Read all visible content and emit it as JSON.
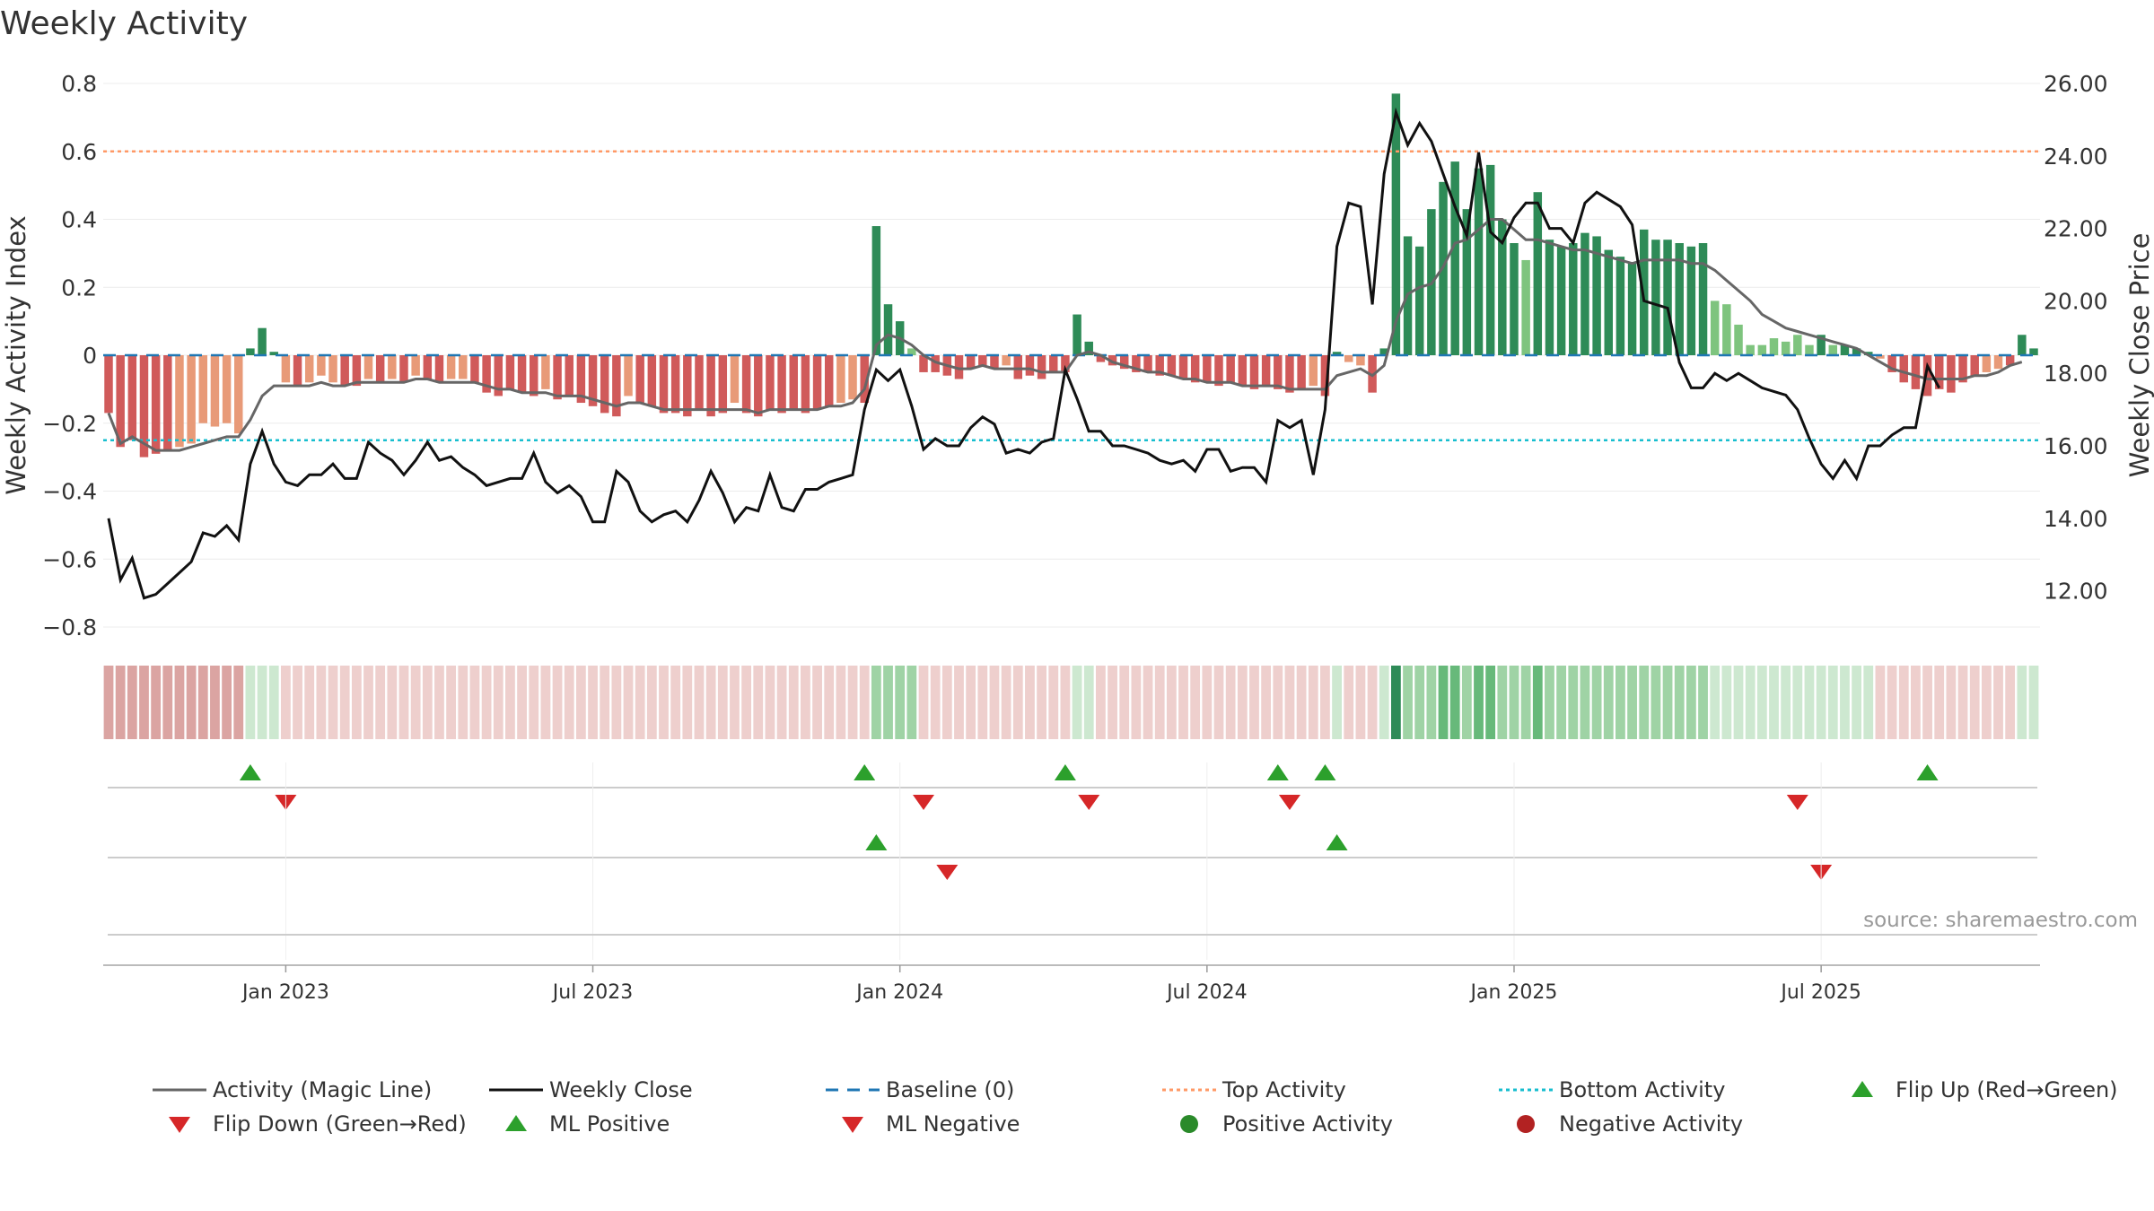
{
  "title": "Weekly Activity",
  "source": "source: sharemaestro.com",
  "colors": {
    "bull_dark": "#2e8b57",
    "bull_light": "#7ec47e",
    "bear_dark": "#d05a5a",
    "bear_light": "#e89a78",
    "magic": "#666666",
    "close": "#111111",
    "baseline": "#1f77b4",
    "top": "#ff9966",
    "bottom": "#17becf",
    "up": "#2ca02c",
    "down": "#d62728"
  },
  "chart_data": {
    "type": "bar+line",
    "title": "Weekly Activity",
    "ylabel": "Weekly Activity Index",
    "y2label": "Weekly Close Price",
    "ylim": [
      -0.8,
      0.8
    ],
    "y2lim": [
      11.0,
      26.0
    ],
    "y_ticks": [
      "0.8",
      "0.6",
      "0.4",
      "0.2",
      "0",
      "−0.2",
      "−0.4",
      "−0.6",
      "−0.8"
    ],
    "y_tick_values": [
      0.8,
      0.6,
      0.4,
      0.2,
      0,
      -0.2,
      -0.4,
      -0.6,
      -0.8
    ],
    "y2_ticks": [
      "26.00",
      "24.00",
      "22.00",
      "20.00",
      "18.00",
      "16.00",
      "14.00",
      "12.00"
    ],
    "y2_tick_values": [
      26,
      24,
      22,
      20,
      18,
      16,
      14,
      12
    ],
    "x_ticks": [
      "Jan 2023",
      "Jul 2023",
      "Jan 2024",
      "Jul 2024",
      "Jan 2025",
      "Jul 2025"
    ],
    "x_tick_weeks": [
      15,
      41,
      67,
      93,
      119,
      145
    ],
    "top_activity": 0.6,
    "bottom_activity": -0.25,
    "baseline": 0,
    "activity": [
      -0.17,
      -0.27,
      -0.25,
      -0.3,
      -0.29,
      -0.28,
      -0.27,
      -0.26,
      -0.2,
      -0.21,
      -0.2,
      -0.23,
      0.02,
      0.08,
      0.01,
      -0.08,
      -0.09,
      -0.08,
      -0.06,
      -0.08,
      -0.09,
      -0.09,
      -0.07,
      -0.08,
      -0.07,
      -0.08,
      -0.06,
      -0.07,
      -0.08,
      -0.07,
      -0.07,
      -0.08,
      -0.11,
      -0.12,
      -0.1,
      -0.11,
      -0.12,
      -0.1,
      -0.13,
      -0.12,
      -0.14,
      -0.15,
      -0.17,
      -0.18,
      -0.12,
      -0.14,
      -0.15,
      -0.17,
      -0.17,
      -0.18,
      -0.16,
      -0.18,
      -0.17,
      -0.14,
      -0.17,
      -0.18,
      -0.16,
      -0.17,
      -0.16,
      -0.17,
      -0.16,
      -0.15,
      -0.14,
      -0.13,
      -0.14,
      0.38,
      0.15,
      0.1,
      0.02,
      -0.05,
      -0.05,
      -0.06,
      -0.07,
      -0.04,
      -0.03,
      -0.04,
      -0.03,
      -0.07,
      -0.06,
      -0.07,
      -0.05,
      -0.05,
      0.12,
      0.04,
      -0.02,
      -0.03,
      -0.04,
      -0.05,
      -0.05,
      -0.06,
      -0.06,
      -0.07,
      -0.08,
      -0.08,
      -0.09,
      -0.08,
      -0.09,
      -0.1,
      -0.09,
      -0.1,
      -0.11,
      -0.1,
      -0.09,
      -0.12,
      0.01,
      -0.02,
      -0.03,
      -0.11,
      0.02,
      0.77,
      0.35,
      0.32,
      0.43,
      0.51,
      0.57,
      0.43,
      0.55,
      0.56,
      0.4,
      0.33,
      0.28,
      0.48,
      0.34,
      0.32,
      0.33,
      0.36,
      0.35,
      0.31,
      0.29,
      0.27,
      0.37,
      0.34,
      0.34,
      0.33,
      0.32,
      0.33,
      0.16,
      0.15,
      0.09,
      0.03,
      0.03,
      0.05,
      0.04,
      0.06,
      0.03,
      0.06,
      0.03,
      0.03,
      0.02,
      0.01,
      -0.01,
      -0.05,
      -0.08,
      -0.1,
      -0.12,
      -0.1,
      -0.11,
      -0.08,
      -0.06,
      -0.05,
      -0.04,
      -0.03,
      0.06,
      0.02
    ],
    "magic_line": [
      -0.17,
      -0.26,
      -0.24,
      -0.26,
      -0.28,
      -0.28,
      -0.28,
      -0.27,
      -0.26,
      -0.25,
      -0.24,
      -0.24,
      -0.19,
      -0.12,
      -0.09,
      -0.09,
      -0.09,
      -0.09,
      -0.08,
      -0.09,
      -0.09,
      -0.08,
      -0.08,
      -0.08,
      -0.08,
      -0.08,
      -0.07,
      -0.07,
      -0.08,
      -0.08,
      -0.08,
      -0.08,
      -0.09,
      -0.1,
      -0.1,
      -0.11,
      -0.11,
      -0.11,
      -0.12,
      -0.12,
      -0.12,
      -0.13,
      -0.14,
      -0.15,
      -0.14,
      -0.14,
      -0.15,
      -0.16,
      -0.16,
      -0.16,
      -0.16,
      -0.16,
      -0.16,
      -0.16,
      -0.16,
      -0.17,
      -0.16,
      -0.16,
      -0.16,
      -0.16,
      -0.16,
      -0.15,
      -0.15,
      -0.14,
      -0.1,
      0.03,
      0.06,
      0.05,
      0.03,
      0.0,
      -0.02,
      -0.03,
      -0.04,
      -0.04,
      -0.03,
      -0.04,
      -0.04,
      -0.04,
      -0.04,
      -0.05,
      -0.05,
      -0.05,
      0.0,
      0.01,
      0.0,
      -0.02,
      -0.03,
      -0.04,
      -0.05,
      -0.05,
      -0.06,
      -0.07,
      -0.07,
      -0.08,
      -0.08,
      -0.08,
      -0.09,
      -0.09,
      -0.09,
      -0.09,
      -0.1,
      -0.1,
      -0.1,
      -0.1,
      -0.06,
      -0.05,
      -0.04,
      -0.06,
      -0.03,
      0.1,
      0.18,
      0.2,
      0.21,
      0.26,
      0.33,
      0.34,
      0.37,
      0.4,
      0.4,
      0.37,
      0.34,
      0.34,
      0.33,
      0.32,
      0.31,
      0.31,
      0.3,
      0.29,
      0.28,
      0.27,
      0.28,
      0.28,
      0.28,
      0.28,
      0.27,
      0.27,
      0.25,
      0.22,
      0.19,
      0.16,
      0.12,
      0.1,
      0.08,
      0.07,
      0.06,
      0.05,
      0.04,
      0.03,
      0.02,
      0.0,
      -0.02,
      -0.04,
      -0.05,
      -0.06,
      -0.07,
      -0.07,
      -0.07,
      -0.07,
      -0.06,
      -0.06,
      -0.05,
      -0.03,
      -0.02
    ],
    "weekly_close": [
      14.0,
      12.3,
      12.9,
      11.8,
      11.9,
      12.2,
      12.5,
      12.8,
      13.6,
      13.5,
      13.8,
      13.4,
      15.5,
      16.4,
      15.5,
      15.0,
      14.9,
      15.2,
      15.2,
      15.5,
      15.1,
      15.1,
      16.1,
      15.8,
      15.6,
      15.2,
      15.6,
      16.1,
      15.6,
      15.7,
      15.4,
      15.2,
      14.9,
      15.0,
      15.1,
      15.1,
      15.8,
      15.0,
      14.7,
      14.9,
      14.6,
      13.9,
      13.9,
      15.3,
      15.0,
      14.2,
      13.9,
      14.1,
      14.2,
      13.9,
      14.5,
      15.3,
      14.7,
      13.9,
      14.3,
      14.2,
      15.2,
      14.3,
      14.2,
      14.8,
      14.8,
      15.0,
      15.1,
      15.2,
      17.0,
      18.1,
      17.8,
      18.1,
      17.1,
      15.9,
      16.2,
      16.0,
      16.0,
      16.5,
      16.8,
      16.6,
      15.8,
      15.9,
      15.8,
      16.1,
      16.2,
      18.1,
      17.3,
      16.4,
      16.4,
      16.0,
      16.0,
      15.9,
      15.8,
      15.6,
      15.5,
      15.6,
      15.3,
      15.9,
      15.9,
      15.3,
      15.4,
      15.4,
      15.0,
      16.7,
      16.5,
      16.7,
      15.2,
      17.0,
      21.5,
      22.7,
      22.6,
      19.9,
      23.5,
      25.2,
      24.3,
      24.9,
      24.4,
      23.5,
      22.6,
      21.8,
      24.1,
      21.9,
      21.6,
      22.3,
      22.7,
      22.7,
      22.0,
      22.0,
      21.6,
      22.7,
      23.0,
      22.8,
      22.6,
      22.1,
      20.0,
      19.9,
      19.8,
      18.3,
      17.6,
      17.6,
      18.0,
      17.8,
      18.0,
      17.8,
      17.6,
      17.5,
      17.4,
      17.0,
      16.2,
      15.5,
      15.1,
      15.6,
      15.1,
      16.0,
      16.0,
      16.3,
      16.5,
      16.5,
      18.2,
      17.6
    ],
    "ribbon": [
      -3,
      -3,
      -3,
      -3,
      -3,
      -3,
      -3,
      -3,
      -3,
      -3,
      -3,
      -3,
      1,
      1,
      1,
      -1,
      -1,
      -1,
      -1,
      -1,
      -1,
      -1,
      -1,
      -1,
      -1,
      -1,
      -1,
      -1,
      -1,
      -1,
      -1,
      -1,
      -1,
      -1,
      -1,
      -1,
      -1,
      -1,
      -1,
      -1,
      -1,
      -1,
      -1,
      -1,
      -1,
      -1,
      -1,
      -1,
      -1,
      -1,
      -1,
      -1,
      -1,
      -1,
      -1,
      -1,
      -1,
      -1,
      -1,
      -1,
      -1,
      -1,
      -1,
      -1,
      -1,
      2,
      2,
      2,
      2,
      -1,
      -1,
      -1,
      -1,
      -1,
      -1,
      -1,
      -1,
      -1,
      -1,
      -1,
      -1,
      -1,
      1,
      1,
      -1,
      -1,
      -1,
      -1,
      -1,
      -1,
      -1,
      -1,
      -1,
      -1,
      -1,
      -1,
      -1,
      -1,
      -1,
      -1,
      -1,
      -1,
      -1,
      -1,
      1,
      -1,
      -1,
      -1,
      1,
      4,
      2,
      2,
      2,
      3,
      3,
      2,
      3,
      3,
      2,
      2,
      2,
      3,
      2,
      2,
      2,
      2,
      2,
      2,
      2,
      2,
      2,
      2,
      2,
      2,
      2,
      2,
      1,
      1,
      1,
      1,
      1,
      1,
      1,
      1,
      1,
      1,
      1,
      1,
      1,
      1,
      -1,
      -1,
      -1,
      -1,
      -1,
      -1,
      -1,
      -1,
      -1,
      -1,
      -1,
      -1,
      1,
      1
    ],
    "flip_up_weeks": [
      12,
      64,
      81,
      99,
      103,
      154
    ],
    "flip_down_weeks": [
      15,
      69,
      83,
      100,
      143
    ],
    "ml_positive_weeks": [
      65,
      104
    ],
    "ml_negative_weeks": [
      71,
      145
    ],
    "legend": [
      "Activity (Magic Line)",
      "Weekly Close",
      "Baseline (0)",
      "Top Activity",
      "Bottom Activity",
      "Flip Up (Red→Green)",
      "Flip Down (Green→Red)",
      "ML Positive",
      "ML Negative",
      "Positive Activity",
      "Negative Activity"
    ]
  }
}
